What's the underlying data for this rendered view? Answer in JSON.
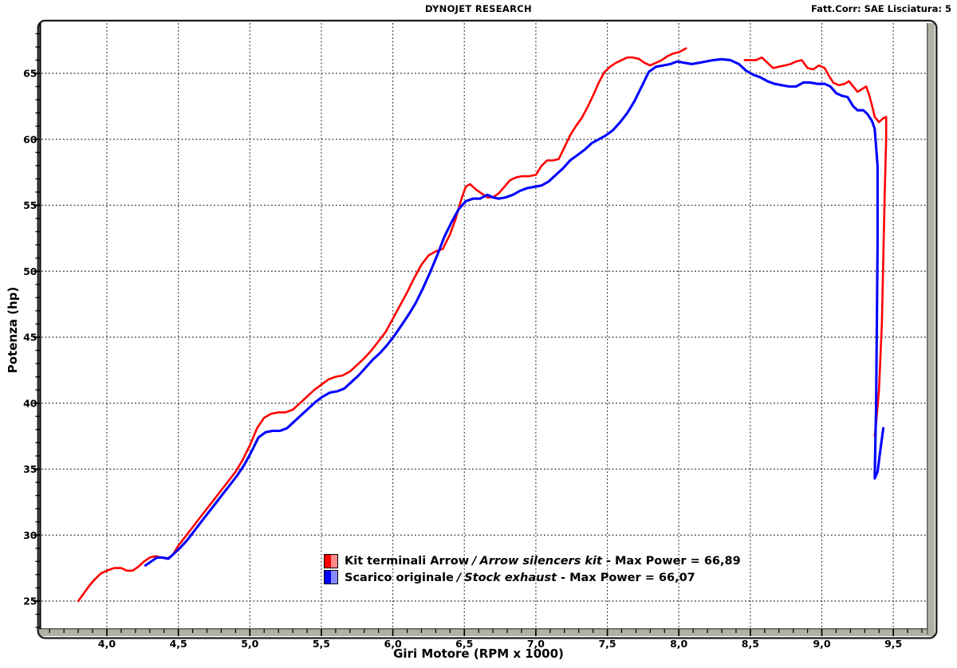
{
  "header": {
    "title": "DYNOJET RESEARCH",
    "correction": "Fatt.Corr: SAE  Lisciatura: 5"
  },
  "axes": {
    "x": {
      "label": "Giri Motore (RPM x 1000)",
      "tick_labels": [
        "4,0",
        "4,5",
        "5,0",
        "5,5",
        "6,0",
        "6,5",
        "7,0",
        "7,5",
        "8,0",
        "8,5",
        "9,0",
        "9,5"
      ],
      "tick_values": [
        4,
        4.5,
        5,
        5.5,
        6,
        6.5,
        7,
        7.5,
        8,
        8.5,
        9,
        9.5
      ],
      "minor_step": 0.1
    },
    "y": {
      "label": "Potenza (hp)",
      "tick_values": [
        25,
        30,
        35,
        40,
        45,
        50,
        55,
        60,
        65
      ],
      "minor_step": 1
    }
  },
  "legend": {
    "items": [
      {
        "name": "Kit terminali Arrow",
        "separator": "/",
        "alt_name": "Arrow silencers kit",
        "suffix": "- Max Power = 66,89",
        "color": "#ff0000",
        "color_light": "#ff8a8a"
      },
      {
        "name": "Scarico originale",
        "separator": "/",
        "alt_name": "Stock exhaust",
        "suffix": "- Max Power = 66,07",
        "color": "#0000ff",
        "color_light": "#8a8aff"
      }
    ]
  },
  "theme": {
    "grid_color": "#2e2e2e",
    "frame_color": "#1c1c1c",
    "bar_fill": "#b2b2a4",
    "bar_shadow": "#63635a",
    "background": "#ffffff"
  },
  "chart_data": {
    "type": "line",
    "title": "DYNOJET RESEARCH",
    "xlabel": "Giri Motore (RPM x 1000)",
    "ylabel": "Potenza (hp)",
    "xlim": [
      3.55,
      9.72
    ],
    "ylim": [
      23,
      68.8
    ],
    "x_major_ticks": [
      4,
      4.5,
      5,
      5.5,
      6,
      6.5,
      7,
      7.5,
      8,
      8.5,
      9,
      9.5
    ],
    "y_major_ticks": [
      25,
      30,
      35,
      40,
      45,
      50,
      55,
      60,
      65
    ],
    "x_minor_step": 0.1,
    "y_minor_step": 1,
    "grid": "dashed",
    "legend_position": "bottom-center-inside",
    "series": [
      {
        "id": "arrow-kit",
        "name": "Kit terminali Arrow / Arrow silencers kit",
        "max_power": 66.89,
        "max_power_label": "66,89",
        "color": "#ff0000",
        "width": 2.6,
        "segments": [
          [
            [
              3.8,
              25
            ],
            [
              3.84,
              25.6
            ],
            [
              3.88,
              26.2
            ],
            [
              3.92,
              26.7
            ],
            [
              3.96,
              27.1
            ],
            [
              4,
              27.3
            ],
            [
              4.05,
              27.5
            ],
            [
              4.1,
              27.5
            ],
            [
              4.14,
              27.3
            ],
            [
              4.18,
              27.3
            ],
            [
              4.22,
              27.6
            ],
            [
              4.26,
              28
            ],
            [
              4.3,
              28.3
            ],
            [
              4.34,
              28.4
            ],
            [
              4.38,
              28.3
            ],
            [
              4.42,
              28.2
            ],
            [
              4.46,
              28.5
            ],
            [
              4.5,
              29.2
            ],
            [
              4.55,
              29.9
            ],
            [
              4.6,
              30.6
            ],
            [
              4.65,
              31.3
            ],
            [
              4.7,
              32
            ],
            [
              4.75,
              32.7
            ],
            [
              4.8,
              33.4
            ],
            [
              4.85,
              34.1
            ],
            [
              4.9,
              34.8
            ],
            [
              4.95,
              35.7
            ],
            [
              5,
              36.8
            ],
            [
              5.05,
              38.1
            ],
            [
              5.1,
              38.9
            ],
            [
              5.15,
              39.2
            ],
            [
              5.2,
              39.3
            ],
            [
              5.25,
              39.3
            ],
            [
              5.3,
              39.5
            ],
            [
              5.35,
              40
            ],
            [
              5.4,
              40.5
            ],
            [
              5.45,
              41
            ],
            [
              5.5,
              41.4
            ],
            [
              5.55,
              41.8
            ],
            [
              5.6,
              42
            ],
            [
              5.65,
              42.1
            ],
            [
              5.7,
              42.4
            ],
            [
              5.75,
              42.9
            ],
            [
              5.8,
              43.4
            ],
            [
              5.85,
              44
            ],
            [
              5.9,
              44.7
            ],
            [
              5.95,
              45.4
            ],
            [
              6,
              46.4
            ],
            [
              6.05,
              47.4
            ],
            [
              6.1,
              48.4
            ],
            [
              6.15,
              49.5
            ],
            [
              6.2,
              50.5
            ],
            [
              6.25,
              51.2
            ],
            [
              6.3,
              51.5
            ],
            [
              6.35,
              51.7
            ],
            [
              6.4,
              52.8
            ],
            [
              6.44,
              54
            ],
            [
              6.48,
              55.5
            ],
            [
              6.51,
              56.4
            ],
            [
              6.54,
              56.6
            ],
            [
              6.58,
              56.2
            ],
            [
              6.62,
              55.9
            ],
            [
              6.66,
              55.6
            ],
            [
              6.7,
              55.6
            ],
            [
              6.74,
              55.9
            ],
            [
              6.78,
              56.4
            ],
            [
              6.82,
              56.9
            ],
            [
              6.86,
              57.1
            ],
            [
              6.9,
              57.2
            ],
            [
              6.95,
              57.2
            ],
            [
              7,
              57.3
            ],
            [
              7.04,
              58
            ],
            [
              7.08,
              58.4
            ],
            [
              7.12,
              58.4
            ],
            [
              7.16,
              58.5
            ],
            [
              7.2,
              59.4
            ],
            [
              7.24,
              60.3
            ],
            [
              7.28,
              61
            ],
            [
              7.32,
              61.6
            ],
            [
              7.36,
              62.4
            ],
            [
              7.4,
              63.3
            ],
            [
              7.44,
              64.3
            ],
            [
              7.48,
              65.1
            ],
            [
              7.52,
              65.5
            ],
            [
              7.56,
              65.8
            ],
            [
              7.6,
              66
            ],
            [
              7.64,
              66.2
            ],
            [
              7.68,
              66.2
            ],
            [
              7.72,
              66.1
            ],
            [
              7.76,
              65.8
            ],
            [
              7.8,
              65.6
            ],
            [
              7.84,
              65.8
            ],
            [
              7.88,
              66
            ],
            [
              7.92,
              66.3
            ],
            [
              7.96,
              66.5
            ],
            [
              8,
              66.6
            ],
            [
              8.05,
              66.89
            ]
          ],
          [
            [
              8.46,
              66
            ],
            [
              8.5,
              66
            ],
            [
              8.54,
              66
            ],
            [
              8.58,
              66.2
            ],
            [
              8.62,
              65.8
            ],
            [
              8.66,
              65.4
            ],
            [
              8.7,
              65.5
            ],
            [
              8.74,
              65.6
            ],
            [
              8.78,
              65.7
            ],
            [
              8.82,
              65.9
            ],
            [
              8.86,
              66
            ],
            [
              8.9,
              65.4
            ],
            [
              8.94,
              65.3
            ],
            [
              8.98,
              65.6
            ],
            [
              9.02,
              65.4
            ],
            [
              9.05,
              64.8
            ],
            [
              9.08,
              64.3
            ],
            [
              9.12,
              64.1
            ],
            [
              9.16,
              64.2
            ],
            [
              9.19,
              64.4
            ],
            [
              9.22,
              64
            ],
            [
              9.25,
              63.6
            ],
            [
              9.28,
              63.8
            ],
            [
              9.31,
              64
            ],
            [
              9.33,
              63.4
            ],
            [
              9.35,
              62.6
            ],
            [
              9.37,
              61.7
            ],
            [
              9.4,
              61.3
            ],
            [
              9.43,
              61.6
            ],
            [
              9.45,
              61.7
            ],
            [
              9.45,
              60
            ],
            [
              9.44,
              56
            ],
            [
              9.43,
              51
            ],
            [
              9.42,
              46
            ],
            [
              9.4,
              41
            ],
            [
              9.38,
              38.5
            ],
            [
              9.37,
              37.5
            ]
          ]
        ]
      },
      {
        "id": "stock",
        "name": "Scarico originale / Stock exhaust",
        "max_power": 66.07,
        "max_power_label": "66,07",
        "color": "#0000ff",
        "width": 3.1,
        "segments": [
          [
            [
              4.27,
              27.7
            ],
            [
              4.31,
              28
            ],
            [
              4.35,
              28.3
            ],
            [
              4.39,
              28.3
            ],
            [
              4.43,
              28.2
            ],
            [
              4.47,
              28.6
            ],
            [
              4.51,
              29
            ],
            [
              4.56,
              29.6
            ],
            [
              4.61,
              30.3
            ],
            [
              4.66,
              31
            ],
            [
              4.71,
              31.7
            ],
            [
              4.76,
              32.4
            ],
            [
              4.81,
              33.1
            ],
            [
              4.86,
              33.8
            ],
            [
              4.91,
              34.5
            ],
            [
              4.96,
              35.3
            ],
            [
              5.01,
              36.3
            ],
            [
              5.06,
              37.4
            ],
            [
              5.11,
              37.8
            ],
            [
              5.16,
              37.9
            ],
            [
              5.21,
              37.9
            ],
            [
              5.26,
              38.1
            ],
            [
              5.31,
              38.6
            ],
            [
              5.36,
              39.1
            ],
            [
              5.41,
              39.6
            ],
            [
              5.46,
              40.1
            ],
            [
              5.51,
              40.5
            ],
            [
              5.56,
              40.8
            ],
            [
              5.61,
              40.9
            ],
            [
              5.66,
              41.1
            ],
            [
              5.71,
              41.6
            ],
            [
              5.76,
              42.1
            ],
            [
              5.81,
              42.7
            ],
            [
              5.86,
              43.3
            ],
            [
              5.91,
              43.8
            ],
            [
              5.96,
              44.4
            ],
            [
              6.01,
              45.1
            ],
            [
              6.06,
              45.9
            ],
            [
              6.11,
              46.7
            ],
            [
              6.16,
              47.6
            ],
            [
              6.21,
              48.7
            ],
            [
              6.26,
              49.9
            ],
            [
              6.31,
              51.2
            ],
            [
              6.36,
              52.6
            ],
            [
              6.41,
              53.7
            ],
            [
              6.46,
              54.7
            ],
            [
              6.51,
              55.3
            ],
            [
              6.56,
              55.5
            ],
            [
              6.61,
              55.5
            ],
            [
              6.66,
              55.8
            ],
            [
              6.7,
              55.6
            ],
            [
              6.74,
              55.5
            ],
            [
              6.79,
              55.6
            ],
            [
              6.84,
              55.8
            ],
            [
              6.89,
              56.1
            ],
            [
              6.94,
              56.3
            ],
            [
              6.99,
              56.4
            ],
            [
              7.04,
              56.5
            ],
            [
              7.09,
              56.8
            ],
            [
              7.14,
              57.3
            ],
            [
              7.19,
              57.8
            ],
            [
              7.24,
              58.4
            ],
            [
              7.29,
              58.8
            ],
            [
              7.34,
              59.2
            ],
            [
              7.39,
              59.7
            ],
            [
              7.44,
              60
            ],
            [
              7.49,
              60.3
            ],
            [
              7.54,
              60.7
            ],
            [
              7.59,
              61.3
            ],
            [
              7.64,
              62
            ],
            [
              7.69,
              62.9
            ],
            [
              7.74,
              64
            ],
            [
              7.79,
              65.1
            ],
            [
              7.84,
              65.5
            ],
            [
              7.89,
              65.6
            ],
            [
              7.94,
              65.7
            ],
            [
              7.99,
              65.9
            ],
            [
              8.04,
              65.8
            ],
            [
              8.09,
              65.7
            ],
            [
              8.14,
              65.8
            ],
            [
              8.19,
              65.9
            ],
            [
              8.24,
              66
            ],
            [
              8.3,
              66.07
            ],
            [
              8.36,
              66
            ],
            [
              8.42,
              65.7
            ],
            [
              8.47,
              65.2
            ],
            [
              8.52,
              64.9
            ],
            [
              8.57,
              64.7
            ],
            [
              8.62,
              64.4
            ],
            [
              8.67,
              64.2
            ],
            [
              8.72,
              64.1
            ],
            [
              8.77,
              64
            ],
            [
              8.82,
              64
            ],
            [
              8.87,
              64.3
            ],
            [
              8.92,
              64.3
            ],
            [
              8.97,
              64.2
            ],
            [
              9.02,
              64.2
            ],
            [
              9.06,
              64
            ],
            [
              9.1,
              63.5
            ],
            [
              9.14,
              63.3
            ],
            [
              9.18,
              63.2
            ],
            [
              9.22,
              62.5
            ],
            [
              9.25,
              62.2
            ],
            [
              9.29,
              62.2
            ],
            [
              9.32,
              61.9
            ],
            [
              9.35,
              61.4
            ],
            [
              9.37,
              60.8
            ],
            [
              9.39,
              58
            ],
            [
              9.39,
              52
            ],
            [
              9.385,
              46
            ],
            [
              9.38,
              40
            ],
            [
              9.37,
              34.3
            ],
            [
              9.39,
              34.8
            ],
            [
              9.41,
              36.5
            ],
            [
              9.43,
              38.1
            ]
          ]
        ]
      }
    ]
  }
}
